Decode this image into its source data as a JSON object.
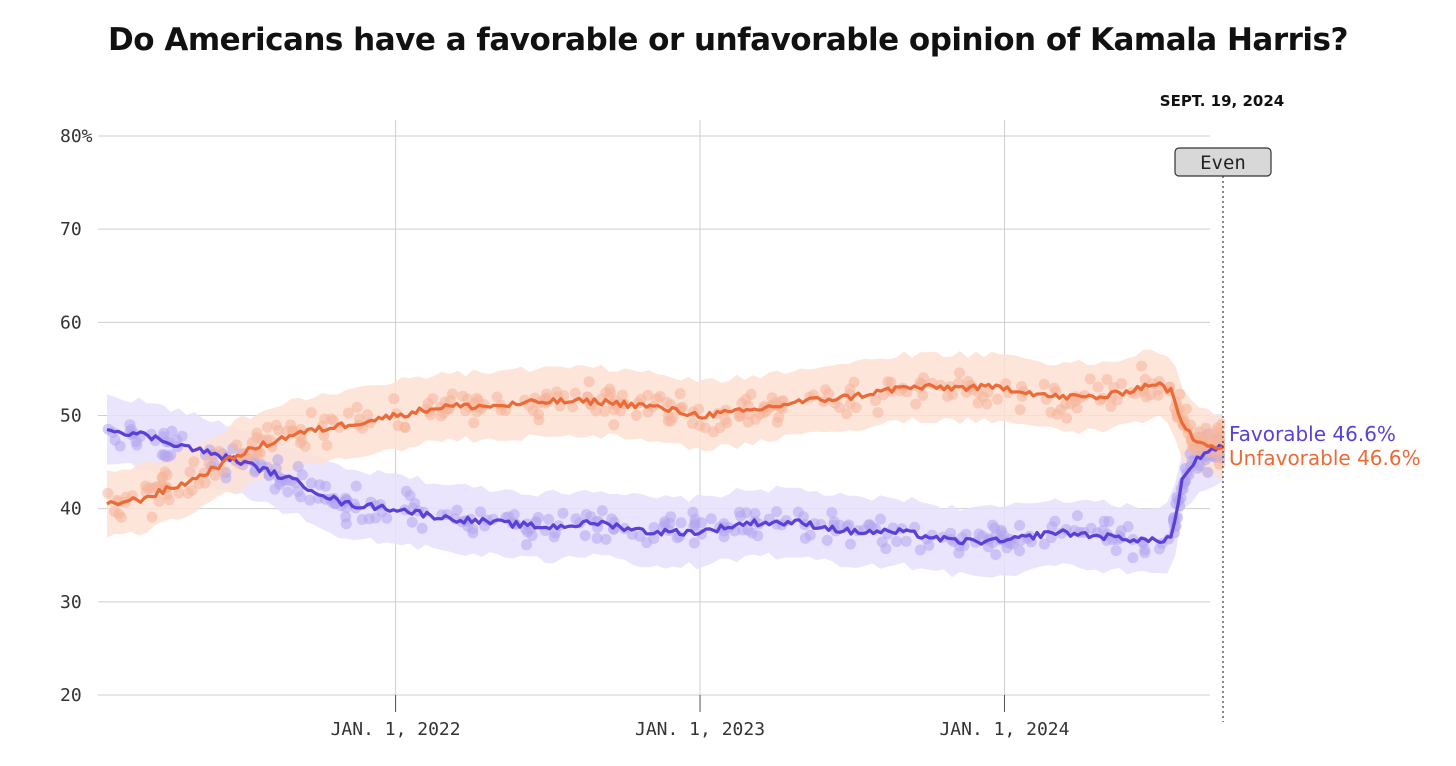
{
  "chart_data": {
    "type": "line",
    "title": "Do Americans have a favorable or unfavorable opinion of Kamala Harris?",
    "date_label": "SEPT. 19, 2024",
    "status_badge": "Even",
    "ylim": [
      20,
      80
    ],
    "y_ticks": [
      "80%",
      "70",
      "60",
      "50",
      "40",
      "30",
      "20"
    ],
    "x_ticks": [
      "JAN. 1, 2022",
      "JAN. 1, 2023",
      "JAN. 1, 2024"
    ],
    "grid": true,
    "x_dates": [
      "2021-01-20",
      "2021-03-01",
      "2021-05-01",
      "2021-07-01",
      "2021-09-01",
      "2021-11-01",
      "2022-01-01",
      "2022-03-01",
      "2022-05-01",
      "2022-07-01",
      "2022-09-01",
      "2022-11-01",
      "2023-01-01",
      "2023-03-01",
      "2023-05-01",
      "2023-07-01",
      "2023-09-01",
      "2023-11-01",
      "2024-01-01",
      "2024-03-01",
      "2024-05-01",
      "2024-07-01",
      "2024-07-20",
      "2024-08-01",
      "2024-08-15",
      "2024-09-01",
      "2024-09-19"
    ],
    "series": [
      {
        "name": "Favorable",
        "color": "#5b3fd6",
        "end_label": "Favorable 46.6%",
        "values": [
          48.5,
          48,
          46.5,
          45,
          43,
          40.5,
          40,
          39,
          38.5,
          38,
          38.5,
          37.5,
          37.5,
          38.5,
          38.5,
          37.5,
          37.5,
          36.5,
          36.5,
          37.5,
          37,
          36.5,
          37,
          43,
          45,
          46,
          46.6
        ]
      },
      {
        "name": "Unfavorable",
        "color": "#ec6a35",
        "end_label": "Unfavorable 46.6%",
        "values": [
          40.5,
          41,
          43,
          46,
          48,
          49,
          50,
          51,
          51,
          51.5,
          51.5,
          51,
          50,
          50.5,
          51.5,
          52,
          53,
          53,
          53,
          52,
          52,
          53.5,
          52.5,
          49,
          47.5,
          47,
          46.6
        ]
      }
    ]
  }
}
